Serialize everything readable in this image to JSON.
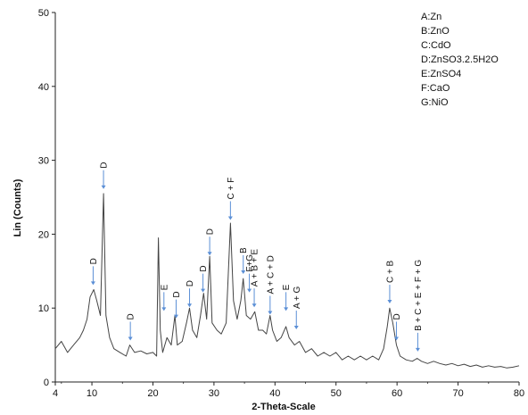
{
  "chart_data": {
    "type": "line",
    "title": "",
    "xlabel": "2-Theta-Scale",
    "ylabel": "Lin (Counts)",
    "xlim": [
      4,
      80
    ],
    "ylim": [
      0,
      50
    ],
    "x_ticks": [
      "4",
      "10",
      "20",
      "30",
      "40",
      "50",
      "60",
      "70",
      "80"
    ],
    "y_ticks": [
      "0",
      "10",
      "20",
      "30",
      "40",
      "50"
    ],
    "legend": [
      "A:Zn",
      "B:ZnO",
      "C:CdO",
      "D:ZnSO3.2.5H2O",
      "E:ZnSO4",
      "F:CaO",
      "G:NiO"
    ],
    "legend_position": "top-right",
    "series": [
      {
        "color": "#444444",
        "points": [
          [
            4,
            4.5
          ],
          [
            5,
            5.5
          ],
          [
            6,
            4.0
          ],
          [
            7,
            5.0
          ],
          [
            8,
            6.0
          ],
          [
            8.6,
            7.0
          ],
          [
            9.2,
            8.5
          ],
          [
            9.7,
            11.5
          ],
          [
            10.3,
            12.5
          ],
          [
            10.8,
            11.0
          ],
          [
            11.4,
            9.0
          ],
          [
            11.9,
            25.5
          ],
          [
            12.3,
            9.0
          ],
          [
            12.9,
            6.0
          ],
          [
            13.6,
            4.5
          ],
          [
            14.6,
            4.0
          ],
          [
            15.6,
            3.5
          ],
          [
            16.2,
            5.0
          ],
          [
            17,
            4.0
          ],
          [
            18,
            4.2
          ],
          [
            19,
            3.8
          ],
          [
            20,
            4.0
          ],
          [
            20.6,
            3.5
          ],
          [
            20.9,
            19.5
          ],
          [
            21.2,
            7.0
          ],
          [
            21.6,
            4.0
          ],
          [
            22.3,
            6.0
          ],
          [
            23,
            5.0
          ],
          [
            23.6,
            9.0
          ],
          [
            24,
            5.0
          ],
          [
            24.8,
            5.5
          ],
          [
            25.5,
            8.0
          ],
          [
            26,
            10.0
          ],
          [
            26.5,
            7.0
          ],
          [
            27.2,
            6.0
          ],
          [
            27.8,
            9.0
          ],
          [
            28.3,
            12.0
          ],
          [
            28.8,
            8.5
          ],
          [
            29.3,
            17.0
          ],
          [
            29.7,
            8.0
          ],
          [
            30.5,
            7.0
          ],
          [
            31.2,
            6.5
          ],
          [
            32,
            8.0
          ],
          [
            32.7,
            21.5
          ],
          [
            33.2,
            11.0
          ],
          [
            33.8,
            8.5
          ],
          [
            34.4,
            11.0
          ],
          [
            34.8,
            14.0
          ],
          [
            35.3,
            9.0
          ],
          [
            36,
            8.5
          ],
          [
            36.7,
            9.5
          ],
          [
            37.3,
            7.0
          ],
          [
            38,
            7.0
          ],
          [
            38.6,
            6.5
          ],
          [
            39.2,
            9.0
          ],
          [
            39.6,
            7.0
          ],
          [
            40.3,
            5.5
          ],
          [
            41,
            6.0
          ],
          [
            41.8,
            7.5
          ],
          [
            42.3,
            6.0
          ],
          [
            43.2,
            5.0
          ],
          [
            44,
            5.5
          ],
          [
            45,
            4.0
          ],
          [
            46,
            4.5
          ],
          [
            47,
            3.5
          ],
          [
            48,
            4.0
          ],
          [
            49,
            3.5
          ],
          [
            50,
            4.0
          ],
          [
            51,
            3.0
          ],
          [
            52,
            3.5
          ],
          [
            53,
            3.0
          ],
          [
            54,
            3.5
          ],
          [
            55,
            3.0
          ],
          [
            56,
            3.5
          ],
          [
            57,
            3.0
          ],
          [
            57.8,
            4.5
          ],
          [
            58.4,
            7.5
          ],
          [
            58.8,
            10.0
          ],
          [
            59.3,
            8.0
          ],
          [
            59.9,
            5.0
          ],
          [
            60.5,
            3.5
          ],
          [
            61.5,
            3.0
          ],
          [
            62.5,
            2.8
          ],
          [
            63.3,
            3.2
          ],
          [
            64,
            2.8
          ],
          [
            65,
            2.5
          ],
          [
            66,
            2.8
          ],
          [
            67,
            2.5
          ],
          [
            68,
            2.3
          ],
          [
            69,
            2.5
          ],
          [
            70,
            2.2
          ],
          [
            71,
            2.4
          ],
          [
            72,
            2.1
          ],
          [
            73,
            2.3
          ],
          [
            74,
            2.0
          ],
          [
            75,
            2.2
          ],
          [
            76,
            2.0
          ],
          [
            77,
            2.1
          ],
          [
            78,
            1.9
          ],
          [
            79,
            2.0
          ],
          [
            80,
            2.2
          ]
        ]
      }
    ],
    "annotations": [
      {
        "text": "D",
        "x": 10.2,
        "y": 13.0
      },
      {
        "text": "D",
        "x": 11.9,
        "y": 26.0
      },
      {
        "text": "D",
        "x": 16.3,
        "y": 5.5
      },
      {
        "text": "E",
        "x": 21.8,
        "y": 9.5
      },
      {
        "text": "D",
        "x": 23.8,
        "y": 8.5
      },
      {
        "text": "D",
        "x": 26.0,
        "y": 10.0
      },
      {
        "text": "D",
        "x": 28.2,
        "y": 12.0
      },
      {
        "text": "D",
        "x": 29.3,
        "y": 17.0
      },
      {
        "text": "C + F",
        "x": 32.7,
        "y": 21.8
      },
      {
        "text": "B",
        "x": 34.8,
        "y": 14.5
      },
      {
        "text": "F+G",
        "x": 35.8,
        "y": 12.0
      },
      {
        "text": "A + B + E",
        "x": 36.6,
        "y": 10.0
      },
      {
        "text": "A + C + D",
        "x": 39.2,
        "y": 9.0
      },
      {
        "text": "E",
        "x": 41.8,
        "y": 9.5
      },
      {
        "text": "A + G",
        "x": 43.5,
        "y": 7.0
      },
      {
        "text": "C + B",
        "x": 58.8,
        "y": 10.5
      },
      {
        "text": "D",
        "x": 59.9,
        "y": 5.5
      },
      {
        "text": "B + C + E + F + G",
        "x": 63.4,
        "y": 4.0
      }
    ]
  }
}
